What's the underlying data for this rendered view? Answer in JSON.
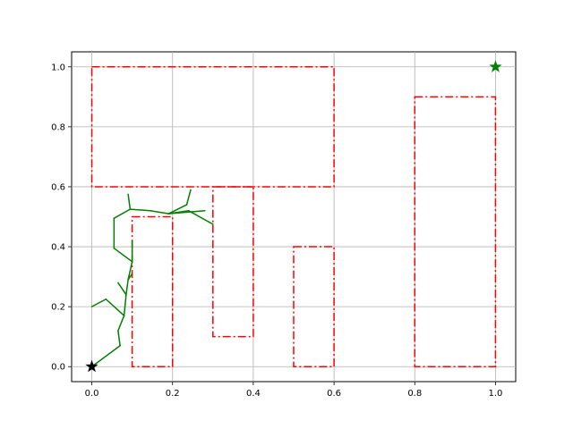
{
  "chart_data": {
    "type": "line",
    "title": "",
    "xlabel": "",
    "ylabel": "",
    "xlim": [
      -0.05,
      1.05
    ],
    "ylim": [
      -0.05,
      1.05
    ],
    "grid": true,
    "x_ticks": [
      "0.0",
      "0.2",
      "0.4",
      "0.6",
      "0.8",
      "1.0"
    ],
    "y_ticks": [
      "0.0",
      "0.2",
      "0.4",
      "0.6",
      "0.8",
      "1.0"
    ],
    "obstacles": [
      {
        "x0": 0.0,
        "y0": 0.6,
        "x1": 0.6,
        "y1": 1.0
      },
      {
        "x0": 0.1,
        "y0": 0.0,
        "x1": 0.2,
        "y1": 0.5
      },
      {
        "x0": 0.3,
        "y0": 0.1,
        "x1": 0.4,
        "y1": 0.6
      },
      {
        "x0": 0.5,
        "y0": 0.0,
        "x1": 0.6,
        "y1": 0.4
      },
      {
        "x0": 0.8,
        "y0": 0.0,
        "x1": 1.0,
        "y1": 0.9
      }
    ],
    "tree_edges": [
      [
        [
          0.0,
          0.0
        ],
        [
          0.07,
          0.07
        ]
      ],
      [
        [
          0.07,
          0.07
        ],
        [
          0.065,
          0.12
        ]
      ],
      [
        [
          0.065,
          0.12
        ],
        [
          0.08,
          0.17
        ]
      ],
      [
        [
          0.08,
          0.17
        ],
        [
          0.035,
          0.225
        ]
      ],
      [
        [
          0.035,
          0.225
        ],
        [
          0.0,
          0.2
        ]
      ],
      [
        [
          0.08,
          0.17
        ],
        [
          0.085,
          0.24
        ]
      ],
      [
        [
          0.085,
          0.24
        ],
        [
          0.065,
          0.28
        ]
      ],
      [
        [
          0.085,
          0.24
        ],
        [
          0.09,
          0.29
        ]
      ],
      [
        [
          0.09,
          0.29
        ],
        [
          0.1,
          0.31
        ]
      ],
      [
        [
          0.09,
          0.29
        ],
        [
          0.1,
          0.35
        ]
      ],
      [
        [
          0.1,
          0.35
        ],
        [
          0.1,
          0.42
        ]
      ],
      [
        [
          0.1,
          0.35
        ],
        [
          0.055,
          0.395
        ]
      ],
      [
        [
          0.055,
          0.395
        ],
        [
          0.055,
          0.495
        ]
      ],
      [
        [
          0.055,
          0.495
        ],
        [
          0.095,
          0.525
        ]
      ],
      [
        [
          0.095,
          0.525
        ],
        [
          0.09,
          0.575
        ]
      ],
      [
        [
          0.095,
          0.525
        ],
        [
          0.145,
          0.52
        ]
      ],
      [
        [
          0.145,
          0.52
        ],
        [
          0.19,
          0.51
        ]
      ],
      [
        [
          0.19,
          0.51
        ],
        [
          0.235,
          0.54
        ]
      ],
      [
        [
          0.235,
          0.54
        ],
        [
          0.245,
          0.59
        ]
      ],
      [
        [
          0.19,
          0.51
        ],
        [
          0.28,
          0.52
        ]
      ],
      [
        [
          0.19,
          0.51
        ],
        [
          0.24,
          0.52
        ]
      ],
      [
        [
          0.24,
          0.52
        ],
        [
          0.3,
          0.475
        ]
      ]
    ],
    "start": {
      "x": 0.0,
      "y": 0.0,
      "color": "#000000"
    },
    "goal": {
      "x": 1.0,
      "y": 1.0,
      "color": "#008000"
    },
    "colors": {
      "obstacle": "#ff0000",
      "tree": "#008000",
      "grid": "#b0b0b0"
    }
  }
}
